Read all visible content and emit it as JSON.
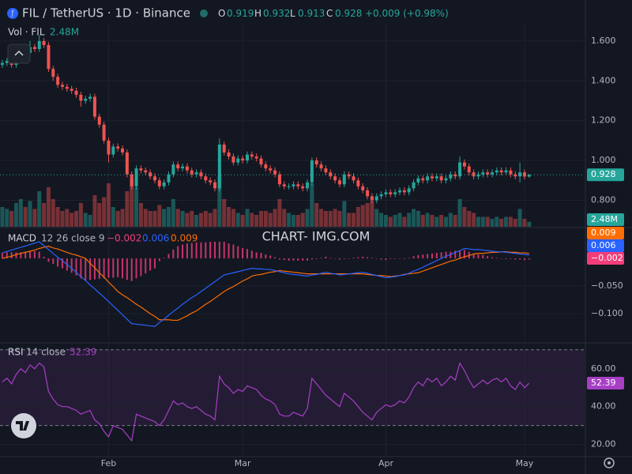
{
  "chart_data": {
    "type": "candlestick",
    "title": "FIL / TetherUS · 1D · Binance",
    "ohlc_prefixes": [
      "O",
      "H",
      "L",
      "C"
    ],
    "change_label": "+0.009 (+0.98%)",
    "up_color": "#26a69a",
    "down_color": "#ef5350",
    "watermark": "CHART- IMG.COM",
    "xlim": [
      -0.5,
      126
    ],
    "xticks": [
      {
        "value": 23,
        "label": "Feb"
      },
      {
        "value": 52,
        "label": "Mar"
      },
      {
        "value": 83,
        "label": "Apr"
      },
      {
        "value": 113,
        "label": "May"
      }
    ],
    "ylim": [
      0.667,
      1.687
    ],
    "yticks": [
      {
        "value": 0.8,
        "label": "0.800"
      },
      {
        "value": 1.0,
        "label": "1.000"
      },
      {
        "value": 1.2,
        "label": "1.200"
      },
      {
        "value": 1.4,
        "label": "1.400"
      },
      {
        "value": 1.6,
        "label": "1.600"
      }
    ],
    "open": [
      1.48,
      1.49,
      1.5,
      1.48,
      1.52,
      1.55,
      1.54,
      1.57,
      1.56,
      1.6,
      1.58,
      1.46,
      1.42,
      1.38,
      1.37,
      1.36,
      1.35,
      1.33,
      1.3,
      1.31,
      1.32,
      1.22,
      1.18,
      1.1,
      1.03,
      1.07,
      1.06,
      1.04,
      0.93,
      0.87,
      0.96,
      0.95,
      0.94,
      0.92,
      0.9,
      0.87,
      0.89,
      0.93,
      0.98,
      0.96,
      0.97,
      0.95,
      0.93,
      0.94,
      0.92,
      0.9,
      0.89,
      0.86,
      1.08,
      1.04,
      1.02,
      0.99,
      1.01,
      1.0,
      1.03,
      1.02,
      1.01,
      0.98,
      0.96,
      0.95,
      0.93,
      0.88,
      0.87,
      0.87,
      0.88,
      0.87,
      0.86,
      0.89,
      1.0,
      0.98,
      0.96,
      0.94,
      0.92,
      0.9,
      0.88,
      0.93,
      0.92,
      0.9,
      0.87,
      0.85,
      0.82,
      0.8,
      0.82,
      0.83,
      0.84,
      0.83,
      0.84,
      0.85,
      0.84,
      0.86,
      0.89,
      0.91,
      0.9,
      0.92,
      0.91,
      0.92,
      0.9,
      0.91,
      0.93,
      0.92,
      0.99,
      0.97,
      0.94,
      0.92,
      0.93,
      0.94,
      0.93,
      0.94,
      0.95,
      0.94,
      0.95,
      0.93,
      0.92,
      0.94,
      0.919
    ],
    "high": [
      1.505,
      1.515,
      1.515,
      1.535,
      1.565,
      1.565,
      1.6,
      1.585,
      1.63,
      1.615,
      1.595,
      1.475,
      1.435,
      1.395,
      1.385,
      1.375,
      1.365,
      1.345,
      1.325,
      1.335,
      1.335,
      1.235,
      1.195,
      1.115,
      1.085,
      1.085,
      1.075,
      1.055,
      0.945,
      0.975,
      0.975,
      0.965,
      0.955,
      0.935,
      0.915,
      0.905,
      0.945,
      0.995,
      0.995,
      0.985,
      0.985,
      0.965,
      0.955,
      0.955,
      0.935,
      0.915,
      0.905,
      1.11,
      1.095,
      1.055,
      1.035,
      1.025,
      1.025,
      1.045,
      1.045,
      1.035,
      1.025,
      0.995,
      0.975,
      0.965,
      0.945,
      0.895,
      0.885,
      0.895,
      0.895,
      0.885,
      0.905,
      1.015,
      1.015,
      0.995,
      0.975,
      0.955,
      0.935,
      0.915,
      0.945,
      0.945,
      0.935,
      0.915,
      0.885,
      0.865,
      0.835,
      0.835,
      0.845,
      0.855,
      0.855,
      0.855,
      0.865,
      0.865,
      0.875,
      0.905,
      0.925,
      0.925,
      0.935,
      0.935,
      0.935,
      0.935,
      0.925,
      0.945,
      0.945,
      1.02,
      1.005,
      0.985,
      0.955,
      0.945,
      0.955,
      0.955,
      0.955,
      0.965,
      0.965,
      0.965,
      0.965,
      0.945,
      0.99,
      0.955,
      0.932
    ],
    "low": [
      1.465,
      1.475,
      1.465,
      1.465,
      1.505,
      1.525,
      1.525,
      1.545,
      1.545,
      1.565,
      1.445,
      1.4,
      1.365,
      1.355,
      1.345,
      1.335,
      1.315,
      1.27,
      1.285,
      1.295,
      1.205,
      1.165,
      1.085,
      0.99,
      1.015,
      1.045,
      1.025,
      0.915,
      0.855,
      0.855,
      0.935,
      0.925,
      0.905,
      0.885,
      0.855,
      0.855,
      0.875,
      0.915,
      0.945,
      0.945,
      0.935,
      0.915,
      0.915,
      0.905,
      0.885,
      0.875,
      0.845,
      0.845,
      1.025,
      1.005,
      0.975,
      0.975,
      0.985,
      0.985,
      1.005,
      0.995,
      0.965,
      0.945,
      0.935,
      0.915,
      0.865,
      0.855,
      0.855,
      0.855,
      0.855,
      0.845,
      0.845,
      0.875,
      0.965,
      0.945,
      0.925,
      0.905,
      0.885,
      0.865,
      0.865,
      0.905,
      0.885,
      0.855,
      0.835,
      0.805,
      0.785,
      0.785,
      0.805,
      0.815,
      0.815,
      0.815,
      0.825,
      0.825,
      0.825,
      0.845,
      0.875,
      0.885,
      0.885,
      0.895,
      0.895,
      0.885,
      0.885,
      0.895,
      0.905,
      0.905,
      0.955,
      0.925,
      0.905,
      0.905,
      0.915,
      0.915,
      0.915,
      0.925,
      0.925,
      0.925,
      0.915,
      0.905,
      0.89,
      0.905,
      0.913
    ],
    "close": [
      1.49,
      1.5,
      1.48,
      1.52,
      1.55,
      1.54,
      1.57,
      1.56,
      1.6,
      1.58,
      1.46,
      1.42,
      1.38,
      1.37,
      1.36,
      1.35,
      1.33,
      1.3,
      1.31,
      1.32,
      1.22,
      1.18,
      1.1,
      1.03,
      1.07,
      1.06,
      1.04,
      0.93,
      0.87,
      0.96,
      0.95,
      0.94,
      0.92,
      0.9,
      0.87,
      0.89,
      0.93,
      0.98,
      0.96,
      0.97,
      0.95,
      0.93,
      0.94,
      0.92,
      0.9,
      0.89,
      0.86,
      1.08,
      1.04,
      1.02,
      0.99,
      1.01,
      1.0,
      1.03,
      1.02,
      1.01,
      0.98,
      0.96,
      0.95,
      0.93,
      0.88,
      0.87,
      0.87,
      0.88,
      0.87,
      0.86,
      0.89,
      1.0,
      0.98,
      0.96,
      0.94,
      0.92,
      0.9,
      0.88,
      0.93,
      0.92,
      0.9,
      0.87,
      0.85,
      0.82,
      0.8,
      0.82,
      0.83,
      0.84,
      0.83,
      0.84,
      0.85,
      0.84,
      0.86,
      0.89,
      0.91,
      0.9,
      0.92,
      0.91,
      0.92,
      0.9,
      0.91,
      0.93,
      0.92,
      0.99,
      0.97,
      0.94,
      0.92,
      0.93,
      0.94,
      0.93,
      0.94,
      0.95,
      0.94,
      0.95,
      0.93,
      0.92,
      0.94,
      0.919,
      0.928
    ],
    "volume_title": "Vol · FIL",
    "volume": [
      10,
      9,
      8,
      12,
      14,
      10,
      13,
      9,
      18,
      12,
      20,
      14,
      10,
      8,
      9,
      7,
      8,
      12,
      7,
      6,
      16,
      12,
      15,
      22,
      10,
      8,
      9,
      18,
      24,
      20,
      12,
      9,
      8,
      8,
      11,
      9,
      10,
      14,
      9,
      8,
      7,
      8,
      6,
      7,
      8,
      7,
      9,
      26,
      14,
      10,
      9,
      7,
      6,
      9,
      7,
      6,
      8,
      8,
      7,
      9,
      14,
      9,
      7,
      6,
      6,
      7,
      9,
      22,
      12,
      9,
      8,
      8,
      9,
      8,
      13,
      7,
      7,
      10,
      11,
      12,
      13,
      9,
      7,
      6,
      5,
      6,
      7,
      5,
      7,
      9,
      8,
      6,
      7,
      6,
      5,
      6,
      5,
      7,
      6,
      14,
      10,
      8,
      7,
      5,
      5,
      5,
      4,
      5,
      4,
      5,
      5,
      4,
      9,
      4,
      2.48
    ],
    "volume_last_label": "2.48M",
    "macd": {
      "title": "MACD",
      "params": "12 26 close 9",
      "ylim": [
        -0.15,
        0.053
      ],
      "yticks": [
        {
          "value": -0.1,
          "label": "−0.100"
        },
        {
          "value": -0.05,
          "label": "−0.050"
        }
      ],
      "macd": {
        "color": "#2962ff",
        "values": [
          0.01,
          0.0125,
          0.015,
          0.0175,
          0.02,
          0.0225,
          0.025,
          0.0275,
          0.03,
          0.023,
          0.016,
          0.009,
          0.002,
          -0.004,
          -0.011,
          -0.018,
          -0.025,
          -0.033,
          -0.04,
          -0.048,
          -0.055,
          -0.063,
          -0.07,
          -0.078,
          -0.086,
          -0.094,
          -0.102,
          -0.11,
          -0.118,
          -0.119,
          -0.12,
          -0.121,
          -0.122,
          -0.123,
          -0.116,
          -0.11,
          -0.103,
          -0.096,
          -0.09,
          -0.083,
          -0.077,
          -0.071,
          -0.066,
          -0.06,
          -0.054,
          -0.048,
          -0.042,
          -0.036,
          -0.03,
          -0.028,
          -0.026,
          -0.024,
          -0.022,
          -0.02,
          -0.018,
          -0.019,
          -0.019,
          -0.02,
          -0.02,
          -0.022,
          -0.024,
          -0.026,
          -0.028,
          -0.029,
          -0.03,
          -0.031,
          -0.032,
          -0.03,
          -0.029,
          -0.027,
          -0.025,
          -0.027,
          -0.028,
          -0.03,
          -0.029,
          -0.028,
          -0.027,
          -0.026,
          -0.025,
          -0.027,
          -0.029,
          -0.031,
          -0.033,
          -0.035,
          -0.034,
          -0.033,
          -0.031,
          -0.03,
          -0.027,
          -0.023,
          -0.02,
          -0.016,
          -0.012,
          -0.008,
          -0.004,
          0.0,
          0.004,
          0.007,
          0.011,
          0.014,
          0.018,
          0.017,
          0.016,
          0.016,
          0.015,
          0.014,
          0.013,
          0.012,
          0.012,
          0.011,
          0.01,
          0.009,
          0.008,
          0.007,
          0.006
        ]
      },
      "signal": {
        "color": "#ff6d00",
        "values": [
          0.0,
          0.002,
          0.004,
          0.007,
          0.009,
          0.011,
          0.013,
          0.015,
          0.018,
          0.02,
          0.022,
          0.019,
          0.017,
          0.014,
          0.011,
          0.008,
          0.006,
          0.003,
          0.0,
          -0.009,
          -0.017,
          -0.026,
          -0.034,
          -0.043,
          -0.051,
          -0.06,
          -0.066,
          -0.071,
          -0.077,
          -0.083,
          -0.088,
          -0.094,
          -0.1,
          -0.105,
          -0.111,
          -0.111,
          -0.111,
          -0.112,
          -0.112,
          -0.108,
          -0.104,
          -0.099,
          -0.095,
          -0.089,
          -0.083,
          -0.078,
          -0.072,
          -0.066,
          -0.06,
          -0.055,
          -0.051,
          -0.046,
          -0.041,
          -0.037,
          -0.032,
          -0.03,
          -0.029,
          -0.027,
          -0.025,
          -0.024,
          -0.022,
          -0.023,
          -0.024,
          -0.025,
          -0.026,
          -0.027,
          -0.028,
          -0.028,
          -0.028,
          -0.028,
          -0.028,
          -0.028,
          -0.028,
          -0.028,
          -0.028,
          -0.028,
          -0.028,
          -0.028,
          -0.028,
          -0.029,
          -0.03,
          -0.031,
          -0.031,
          -0.032,
          -0.033,
          -0.032,
          -0.031,
          -0.029,
          -0.028,
          -0.027,
          -0.026,
          -0.023,
          -0.02,
          -0.017,
          -0.014,
          -0.011,
          -0.008,
          -0.005,
          -0.003,
          0.0,
          0.003,
          0.005,
          0.008,
          0.009,
          0.009,
          0.01,
          0.011,
          0.011,
          0.012,
          0.012,
          0.011,
          0.011,
          0.01,
          0.01,
          0.009
        ]
      },
      "hist": {
        "color": "#f23d7a",
        "values": [
          0.01,
          0.011,
          0.011,
          0.011,
          0.011,
          0.012,
          0.012,
          0.013,
          0.012,
          0.003,
          -0.006,
          -0.01,
          -0.015,
          -0.018,
          -0.022,
          -0.026,
          -0.031,
          -0.036,
          -0.04,
          -0.039,
          -0.038,
          -0.037,
          -0.036,
          -0.035,
          -0.035,
          -0.034,
          -0.036,
          -0.039,
          -0.041,
          -0.036,
          -0.032,
          -0.027,
          -0.022,
          -0.018,
          -0.005,
          0.001,
          0.008,
          0.016,
          0.022,
          0.025,
          0.027,
          0.028,
          0.029,
          0.029,
          0.029,
          0.03,
          0.03,
          0.03,
          0.03,
          0.027,
          0.025,
          0.022,
          0.019,
          0.017,
          0.014,
          0.011,
          0.01,
          0.007,
          0.005,
          0.002,
          -0.002,
          -0.003,
          -0.004,
          -0.004,
          -0.004,
          -0.004,
          -0.004,
          -0.002,
          -0.001,
          0.001,
          0.003,
          0.001,
          0.0,
          -0.002,
          -0.001,
          0.0,
          0.001,
          0.002,
          0.003,
          0.002,
          0.001,
          0.0,
          -0.002,
          -0.003,
          -0.001,
          -0.001,
          0.0,
          -0.001,
          0.001,
          0.004,
          0.006,
          0.007,
          0.008,
          0.009,
          0.01,
          0.011,
          0.012,
          0.012,
          0.014,
          0.014,
          0.015,
          0.012,
          0.008,
          0.007,
          0.006,
          0.004,
          0.002,
          0.001,
          0.0,
          -0.001,
          -0.001,
          -0.002,
          -0.002,
          -0.003,
          -0.002
        ],
        "last_label": "−0.002"
      }
    },
    "rsi": {
      "title": "RSI",
      "params": "14 close",
      "color": "#a73fc4",
      "ylim": [
        14,
        72
      ],
      "yticks": [
        {
          "value": 20,
          "label": "20.00"
        },
        {
          "value": 40,
          "label": "40.00"
        },
        {
          "value": 60,
          "label": "60.00"
        }
      ],
      "bands": [
        70,
        30
      ],
      "values": [
        53,
        55,
        52,
        57,
        60,
        58,
        62,
        60,
        63,
        61,
        48,
        44,
        41,
        40,
        40,
        39,
        38,
        36,
        37,
        38,
        33,
        31,
        27,
        24,
        30,
        29,
        28,
        25,
        22,
        36,
        35,
        34,
        33,
        32,
        30,
        33,
        38,
        43,
        41,
        42,
        40,
        39,
        40,
        38,
        36,
        35,
        33,
        56,
        52,
        50,
        47,
        49,
        48,
        51,
        50,
        49,
        46,
        44,
        43,
        41,
        36,
        35,
        35,
        37,
        36,
        35,
        39,
        55,
        52,
        49,
        46,
        44,
        42,
        40,
        47,
        45,
        43,
        40,
        37,
        35,
        33,
        37,
        39,
        41,
        40,
        41,
        43,
        42,
        45,
        50,
        53,
        51,
        55,
        53,
        55,
        51,
        53,
        56,
        54,
        63,
        59,
        54,
        50,
        52,
        54,
        52,
        54,
        55,
        53,
        55,
        51,
        49,
        53,
        50,
        52.39
      ]
    }
  }
}
